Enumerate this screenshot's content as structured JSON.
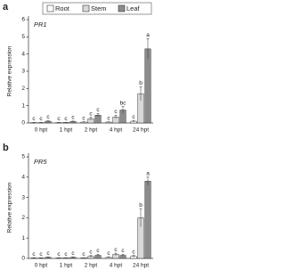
{
  "legend_series": [
    "Root",
    "Stem",
    "Leaf"
  ],
  "chart_data": [
    {
      "type": "bar",
      "panel_label": "a",
      "title": "PR1",
      "ylabel": "Relative expression",
      "categories": [
        "0 hpt",
        "1 hpt",
        "2 hpt",
        "4 hpt",
        "24 hpt"
      ],
      "ylim": [
        0,
        6
      ],
      "yticks": [
        0,
        1,
        2,
        3,
        4,
        5,
        6
      ],
      "series": [
        {
          "name": "Root",
          "color": "#ffffff",
          "values": [
            0.02,
            0.02,
            0.05,
            0.05,
            0.1
          ],
          "errors": [
            0.01,
            0.01,
            0.02,
            0.02,
            0.05
          ],
          "letters": [
            "c",
            "c",
            "c",
            "c",
            "c"
          ]
        },
        {
          "name": "Stem",
          "color": "#d9d9d9",
          "values": [
            0.02,
            0.03,
            0.25,
            0.35,
            1.7
          ],
          "errors": [
            0.01,
            0.01,
            0.08,
            0.1,
            0.4
          ],
          "letters": [
            "c",
            "c",
            "c",
            "c",
            "b"
          ]
        },
        {
          "name": "Leaf",
          "color": "#8c8c8c",
          "values": [
            0.1,
            0.08,
            0.45,
            0.75,
            4.3
          ],
          "errors": [
            0.03,
            0.03,
            0.1,
            0.2,
            0.6
          ],
          "letters": [
            "c",
            "c",
            "c",
            "bc",
            "a"
          ]
        }
      ]
    },
    {
      "type": "bar",
      "panel_label": "b",
      "title": "PR5",
      "ylabel": "Relative expression",
      "categories": [
        "0 hpt",
        "1 hpt",
        "2 hpt",
        "4 hpt",
        "24 hpt"
      ],
      "ylim": [
        0,
        5
      ],
      "yticks": [
        0,
        1,
        2,
        3,
        4,
        5
      ],
      "series": [
        {
          "color": "#ffffff",
          "values": [
            0.02,
            0.02,
            0.03,
            0.05,
            0.1
          ],
          "errors": [
            0.01,
            0.01,
            0.01,
            0.02,
            0.05
          ],
          "letters": [
            "c",
            "c",
            "c",
            "c",
            "c"
          ]
        },
        {
          "color": "#d9d9d9",
          "values": [
            0.02,
            0.03,
            0.1,
            0.2,
            2.0
          ],
          "errors": [
            0.01,
            0.01,
            0.04,
            0.06,
            0.45
          ],
          "letters": [
            "c",
            "c",
            "c",
            "c",
            "b"
          ]
        },
        {
          "color": "#8c8c8c",
          "values": [
            0.05,
            0.05,
            0.15,
            0.15,
            3.8
          ],
          "errors": [
            0.02,
            0.02,
            0.05,
            0.05,
            0.2
          ],
          "letters": [
            "c",
            "c",
            "c",
            "c",
            "a"
          ]
        }
      ]
    }
  ]
}
